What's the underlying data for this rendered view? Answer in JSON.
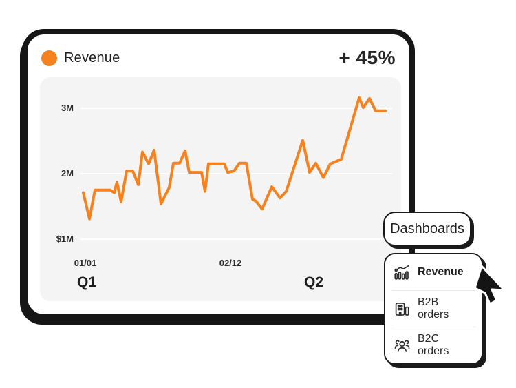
{
  "card": {
    "title": "Revenue",
    "delta": "+ 45%"
  },
  "chart_data": {
    "type": "line",
    "title": "Revenue",
    "unit": "USD millions",
    "ylim": [
      1,
      3.3
    ],
    "grid": true,
    "legend_position": "top-left",
    "y_ticks": [
      {
        "label": "3M",
        "value": 3
      },
      {
        "label": "2M",
        "value": 2
      },
      {
        "label": "$1M",
        "value": 1
      }
    ],
    "x_ticks": [
      {
        "label": "01/01",
        "x": 66
      },
      {
        "label": "02/12",
        "x": 277
      }
    ],
    "quarter_labels": [
      {
        "label": "Q1",
        "x": 68
      },
      {
        "label": "Q2",
        "x": 398
      }
    ],
    "series": [
      {
        "name": "Revenue",
        "color": "#F6821F",
        "points": [
          [
            63,
            1.71
          ],
          [
            72,
            1.31
          ],
          [
            80,
            1.75
          ],
          [
            102,
            1.75
          ],
          [
            108,
            1.71
          ],
          [
            112,
            1.87
          ],
          [
            118,
            1.57
          ],
          [
            126,
            2.04
          ],
          [
            135,
            2.04
          ],
          [
            143,
            1.83
          ],
          [
            149,
            2.33
          ],
          [
            158,
            2.15
          ],
          [
            166,
            2.36
          ],
          [
            176,
            1.54
          ],
          [
            188,
            1.79
          ],
          [
            194,
            2.16
          ],
          [
            203,
            2.16
          ],
          [
            211,
            2.35
          ],
          [
            217,
            2.02
          ],
          [
            235,
            2.02
          ],
          [
            240,
            1.73
          ],
          [
            245,
            2.15
          ],
          [
            268,
            2.15
          ],
          [
            273,
            2.02
          ],
          [
            282,
            2.04
          ],
          [
            290,
            2.16
          ],
          [
            300,
            2.16
          ],
          [
            309,
            1.61
          ],
          [
            314,
            1.58
          ],
          [
            323,
            1.46
          ],
          [
            337,
            1.8
          ],
          [
            349,
            1.63
          ],
          [
            358,
            1.73
          ],
          [
            382,
            2.51
          ],
          [
            392,
            2.02
          ],
          [
            401,
            2.16
          ],
          [
            412,
            1.94
          ],
          [
            422,
            2.15
          ],
          [
            438,
            2.22
          ],
          [
            464,
            3.16
          ],
          [
            470,
            3.01
          ],
          [
            479,
            3.15
          ],
          [
            488,
            2.96
          ],
          [
            502,
            2.96
          ]
        ]
      }
    ]
  },
  "dashboards_button": {
    "label": "Dashboards"
  },
  "menu": {
    "items": [
      {
        "label": "Revenue",
        "icon": "line-chart-icon",
        "active": true
      },
      {
        "label": "B2B orders",
        "icon": "building-icon",
        "active": false
      },
      {
        "label": "B2C orders",
        "icon": "people-icon",
        "active": false
      }
    ]
  },
  "colors": {
    "accent_orange": "#F6821F",
    "ink": "#161616",
    "panel_gray": "#F4F4F4",
    "grid_white": "#FFFFFF",
    "text_dark": "#222222",
    "divider": "#E8E8E8"
  }
}
